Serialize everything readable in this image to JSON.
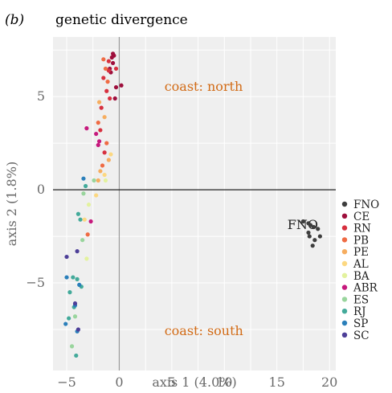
{
  "panel_label": "(b)",
  "chart_data": {
    "type": "scatter",
    "title": "genetic divergence",
    "xlabel": "axis 1 (4.0%)",
    "ylabel": "axis 2 (1.8%)",
    "xlim": [
      -6.3,
      20.6
    ],
    "ylim": [
      -9.7,
      8.2
    ],
    "xticks": [
      -5,
      0,
      5,
      10,
      15,
      20
    ],
    "yticks": [
      -5,
      0,
      5
    ],
    "x_tick_labels": [
      "−5",
      "0",
      "5",
      "10",
      "15",
      "20"
    ],
    "y_tick_labels": [
      "−5",
      "0",
      "5"
    ],
    "grid": true,
    "reference_lines": {
      "x": 0,
      "y": 0
    },
    "legend_position": "right",
    "annotations": [
      {
        "text": "coast: north",
        "x": 4.3,
        "y": 5.3,
        "color": "#d26b16"
      },
      {
        "text": "coast: south",
        "x": 4.3,
        "y": -7.8,
        "color": "#d26b16"
      },
      {
        "text": "FNO",
        "x": 16.0,
        "y": -2.1,
        "color": "#222222"
      }
    ],
    "series": [
      {
        "name": "FNO",
        "color": "#3d3d3d",
        "points": [
          [
            17.5,
            -1.7
          ],
          [
            18.0,
            -2.3
          ],
          [
            18.2,
            -1.9
          ],
          [
            18.5,
            -2.0
          ],
          [
            18.1,
            -2.5
          ],
          [
            18.9,
            -2.1
          ],
          [
            18.6,
            -2.7
          ],
          [
            19.1,
            -2.5
          ],
          [
            18.4,
            -3.0
          ],
          [
            18.0,
            -1.8
          ]
        ]
      },
      {
        "name": "CE",
        "color": "#9e0f3c",
        "points": [
          [
            -0.5,
            7.2
          ],
          [
            -0.7,
            7.1
          ],
          [
            -0.6,
            6.8
          ],
          [
            -0.3,
            5.5
          ],
          [
            0.2,
            5.6
          ],
          [
            -0.8,
            6.3
          ],
          [
            -0.4,
            4.9
          ],
          [
            -0.9,
            6.5
          ],
          [
            -0.6,
            7.3
          ]
        ]
      },
      {
        "name": "RN",
        "color": "#d7303f",
        "points": [
          [
            -1.0,
            6.9
          ],
          [
            -0.3,
            6.5
          ],
          [
            -1.5,
            6.0
          ],
          [
            -1.2,
            5.3
          ],
          [
            -0.9,
            4.9
          ],
          [
            -1.8,
            3.2
          ],
          [
            -1.4,
            2.0
          ],
          [
            -1.0,
            6.4
          ],
          [
            -1.7,
            4.4
          ]
        ]
      },
      {
        "name": "PB",
        "color": "#ef6b44",
        "points": [
          [
            -1.5,
            7.0
          ],
          [
            -1.1,
            5.8
          ],
          [
            -2.0,
            3.6
          ],
          [
            -1.2,
            2.5
          ],
          [
            -1.6,
            1.3
          ],
          [
            -3.0,
            -2.4
          ],
          [
            -1.3,
            6.5
          ]
        ]
      },
      {
        "name": "PE",
        "color": "#f6ad5f",
        "points": [
          [
            -1.9,
            4.7
          ],
          [
            -1.4,
            3.9
          ],
          [
            -1.0,
            1.6
          ],
          [
            -1.8,
            1.0
          ],
          [
            -2.0,
            0.5
          ]
        ]
      },
      {
        "name": "AL",
        "color": "#fcd881",
        "points": [
          [
            -0.8,
            1.9
          ],
          [
            -1.4,
            0.8
          ],
          [
            -3.3,
            -1.6
          ],
          [
            -2.2,
            -0.3
          ]
        ]
      },
      {
        "name": "BA",
        "color": "#e3f29e",
        "points": [
          [
            -1.3,
            0.5
          ],
          [
            -3.1,
            -3.7
          ],
          [
            -2.9,
            -0.8
          ]
        ]
      },
      {
        "name": "ABR",
        "color": "#c6197d",
        "points": [
          [
            -1.9,
            2.6
          ],
          [
            -3.1,
            3.3
          ],
          [
            -2.0,
            2.4
          ],
          [
            -2.7,
            -1.7
          ],
          [
            -2.2,
            3.0
          ]
        ]
      },
      {
        "name": "ES",
        "color": "#99d59d",
        "points": [
          [
            -3.4,
            -0.2
          ],
          [
            -3.5,
            -2.7
          ],
          [
            -2.4,
            0.5
          ],
          [
            -4.5,
            -8.4
          ],
          [
            -4.2,
            -6.8
          ]
        ]
      },
      {
        "name": "RJ",
        "color": "#43aa9a",
        "points": [
          [
            -3.2,
            0.2
          ],
          [
            -3.7,
            -1.6
          ],
          [
            -4.4,
            -4.7
          ],
          [
            -4.7,
            -5.5
          ],
          [
            -4.3,
            -6.3
          ],
          [
            -4.8,
            -6.9
          ],
          [
            -4.1,
            -8.9
          ],
          [
            -3.9,
            -1.3
          ],
          [
            -4.0,
            -4.8
          ],
          [
            -3.6,
            -5.2
          ]
        ]
      },
      {
        "name": "SP",
        "color": "#2a7fba",
        "points": [
          [
            -3.4,
            0.6
          ],
          [
            -4.2,
            -6.2
          ],
          [
            -4.0,
            -7.6
          ],
          [
            -5.0,
            -4.7
          ],
          [
            -3.8,
            -5.1
          ],
          [
            -5.1,
            -7.2
          ]
        ]
      },
      {
        "name": "SC",
        "color": "#4d3f98",
        "points": [
          [
            -5.0,
            -3.6
          ],
          [
            -4.0,
            -3.3
          ],
          [
            -4.2,
            -6.1
          ],
          [
            -3.9,
            -7.5
          ]
        ]
      }
    ]
  }
}
